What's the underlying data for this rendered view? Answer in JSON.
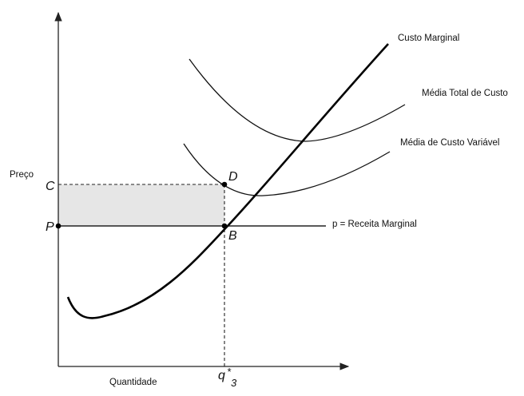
{
  "labels": {
    "y_axis": "Preço",
    "x_axis": "Quantidade",
    "marginal_cost": "Custo Marginal",
    "average_total_cost": "Média Total de Custo",
    "average_variable_cost": "Média de Custo Variável",
    "price_line": "p = Receita Marginal"
  },
  "points": {
    "C": "C",
    "P": "P",
    "D": "D",
    "B": "B",
    "q_main": "q",
    "q_sup": "*",
    "q_sub": "3"
  },
  "colors": {
    "shaded_area": "#e6e6e6",
    "curves": "#000000"
  }
}
